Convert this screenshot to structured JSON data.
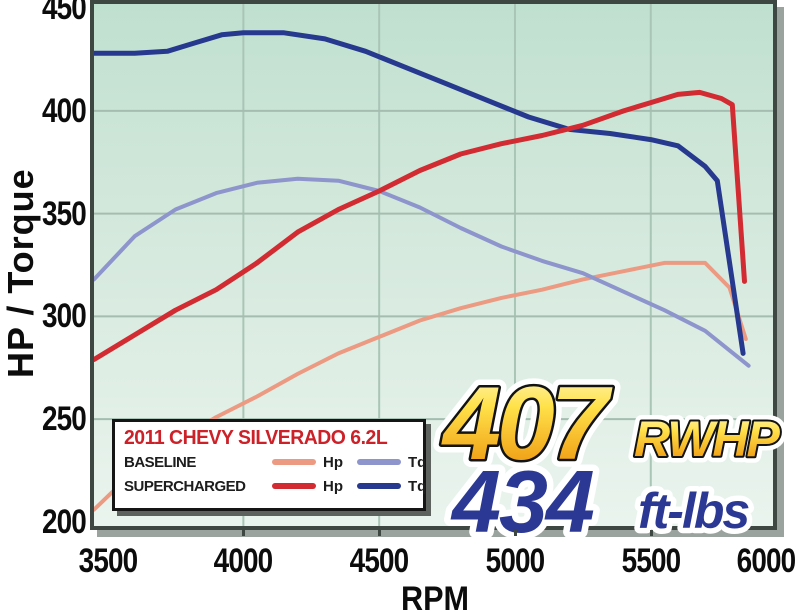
{
  "annotations": {
    "hp_value": "407",
    "hp_unit": "RWHP",
    "tq_value": "434",
    "tq_unit": "ft-lbs",
    "hp_color_top": "#fff7b0",
    "hp_color_bottom": "#eb9714",
    "tq_color": "#2b3994"
  },
  "legend": {
    "title": "2011 CHEVY SILVERADO 6.2L",
    "title_color": "#cc2128",
    "entries": [
      {
        "label": "BASELINE",
        "items": [
          {
            "text": "Hp",
            "series": 0
          },
          {
            "text": "Tq",
            "series": 1
          }
        ]
      },
      {
        "label": "SUPERCHARGED",
        "items": [
          {
            "text": "Hp",
            "series": 3
          },
          {
            "text": "Tq",
            "series": 2
          }
        ]
      }
    ]
  },
  "chart_data": {
    "type": "line",
    "title": "2011 CHEVY SILVERADO 6.2L",
    "xlabel": "RPM",
    "ylabel": "HP / Torque",
    "x_range": [
      3450,
      5950
    ],
    "y_range": [
      198,
      452
    ],
    "x_ticks": [
      3500,
      4000,
      4500,
      5000,
      5500,
      6000
    ],
    "y_ticks": [
      200,
      250,
      300,
      350,
      400,
      450
    ],
    "grid": true,
    "legend_position": "bottom-left",
    "series": [
      {
        "name": "Baseline Hp",
        "color": "#ec9a82",
        "width": 4,
        "points": [
          [
            3450,
            206
          ],
          [
            3600,
            225
          ],
          [
            3750,
            239
          ],
          [
            3900,
            251
          ],
          [
            4050,
            261
          ],
          [
            4200,
            272
          ],
          [
            4350,
            282
          ],
          [
            4500,
            290
          ],
          [
            4650,
            298
          ],
          [
            4800,
            304
          ],
          [
            4950,
            309
          ],
          [
            5100,
            313
          ],
          [
            5250,
            318
          ],
          [
            5400,
            322
          ],
          [
            5550,
            326
          ],
          [
            5700,
            326
          ],
          [
            5790,
            314
          ],
          [
            5850,
            289
          ]
        ]
      },
      {
        "name": "Baseline Tq",
        "color": "#8d95cc",
        "width": 4,
        "points": [
          [
            3450,
            318
          ],
          [
            3600,
            339
          ],
          [
            3750,
            352
          ],
          [
            3900,
            360
          ],
          [
            4050,
            365
          ],
          [
            4200,
            367
          ],
          [
            4350,
            366
          ],
          [
            4500,
            361
          ],
          [
            4650,
            353
          ],
          [
            4800,
            343
          ],
          [
            4950,
            334
          ],
          [
            5100,
            327
          ],
          [
            5250,
            321
          ],
          [
            5400,
            312
          ],
          [
            5550,
            303
          ],
          [
            5700,
            293
          ],
          [
            5860,
            276
          ]
        ]
      },
      {
        "name": "Supercharged Tq",
        "color": "#26398f",
        "width": 5,
        "points": [
          [
            3450,
            428
          ],
          [
            3600,
            428
          ],
          [
            3720,
            429
          ],
          [
            3820,
            433
          ],
          [
            3920,
            437
          ],
          [
            4000,
            438
          ],
          [
            4150,
            438
          ],
          [
            4300,
            435
          ],
          [
            4450,
            429
          ],
          [
            4600,
            421
          ],
          [
            4750,
            413
          ],
          [
            4900,
            405
          ],
          [
            5050,
            397
          ],
          [
            5200,
            391
          ],
          [
            5350,
            389
          ],
          [
            5500,
            386
          ],
          [
            5600,
            383
          ],
          [
            5700,
            373
          ],
          [
            5745,
            366
          ],
          [
            5840,
            282
          ]
        ]
      },
      {
        "name": "Supercharged Hp",
        "color": "#d22b31",
        "width": 5,
        "points": [
          [
            3450,
            279
          ],
          [
            3600,
            291
          ],
          [
            3750,
            303
          ],
          [
            3900,
            313
          ],
          [
            4050,
            326
          ],
          [
            4200,
            341
          ],
          [
            4350,
            352
          ],
          [
            4500,
            361
          ],
          [
            4650,
            371
          ],
          [
            4800,
            379
          ],
          [
            4950,
            384
          ],
          [
            5100,
            388
          ],
          [
            5250,
            393
          ],
          [
            5400,
            400
          ],
          [
            5500,
            404
          ],
          [
            5600,
            408
          ],
          [
            5680,
            409
          ],
          [
            5760,
            406
          ],
          [
            5800,
            403
          ],
          [
            5845,
            317
          ]
        ]
      }
    ]
  }
}
